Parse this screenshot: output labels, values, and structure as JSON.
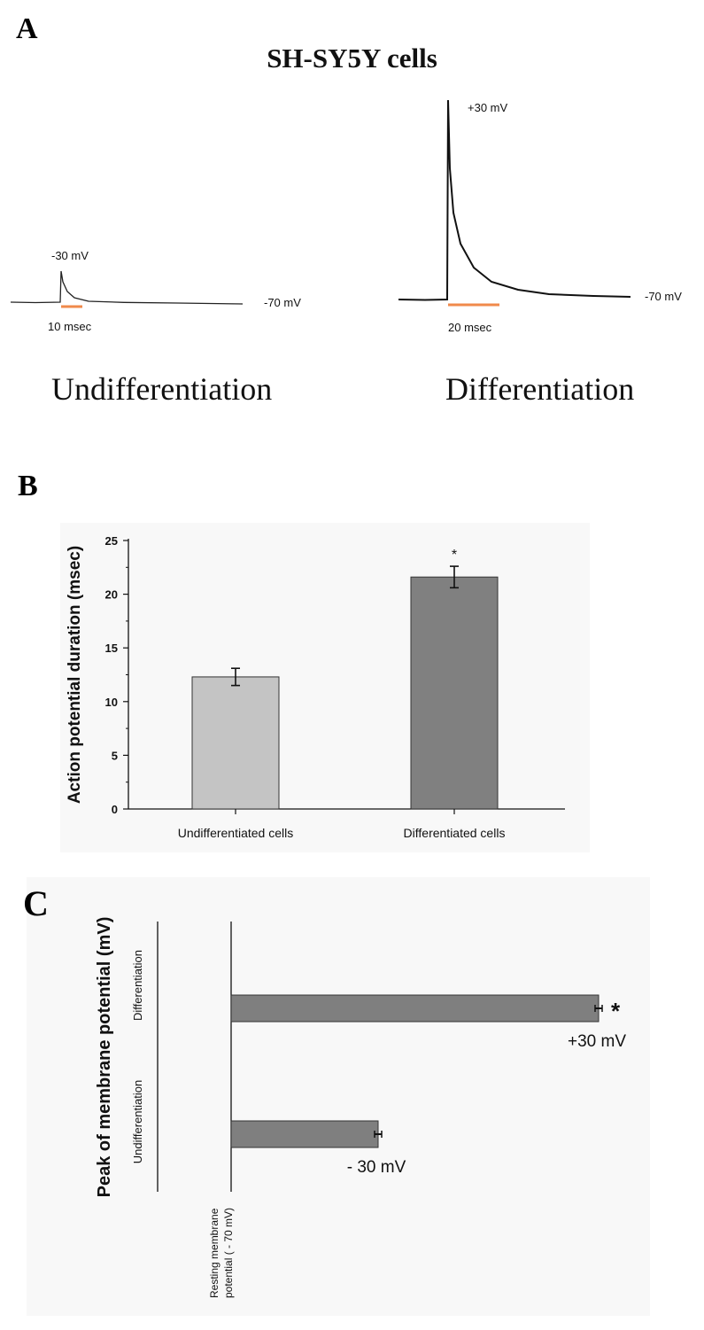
{
  "panel_a": {
    "letter": "A",
    "title": "SH-SY5Y cells",
    "undiff": {
      "peak": "-30 mV",
      "rest": "-70 mV",
      "scale": "10 msec",
      "caption": "Undifferentiation"
    },
    "diff": {
      "peak": "+30 mV",
      "rest": "-70 mV",
      "scale": "20 msec",
      "caption": "Differentiation"
    }
  },
  "panel_b": {
    "letter": "B"
  },
  "panel_c": {
    "letter": "C"
  },
  "colors": {
    "trace": "#1a1a1a",
    "scale_bar": "#f08a4b",
    "bar_light": "#c4c4c4",
    "bar_dark": "#808080",
    "bar_c": "#7f7f7f"
  },
  "chart_data": [
    {
      "type": "bar",
      "categories": [
        "Undifferentiated cells",
        "Differentiated cells"
      ],
      "values": [
        12.3,
        21.6
      ],
      "errors": [
        0.8,
        1.0
      ],
      "significance": [
        "",
        "*"
      ],
      "ylabel": "Action potential duration (msec)",
      "ylim": [
        0,
        25
      ],
      "yticks": [
        0,
        5,
        10,
        15,
        20,
        25
      ]
    },
    {
      "type": "bar",
      "orientation": "horizontal",
      "categories": [
        "Differentiation",
        "Undifferentiation"
      ],
      "values": [
        30,
        -30
      ],
      "value_labels": [
        "+30 mV",
        "- 30 mV"
      ],
      "baseline": -70,
      "significance": [
        "*",
        ""
      ],
      "ylabel": "Peak of membrane potential (mV)",
      "baseline_label": [
        "Resting membrane",
        "potential ( - 70 mV)"
      ]
    }
  ]
}
